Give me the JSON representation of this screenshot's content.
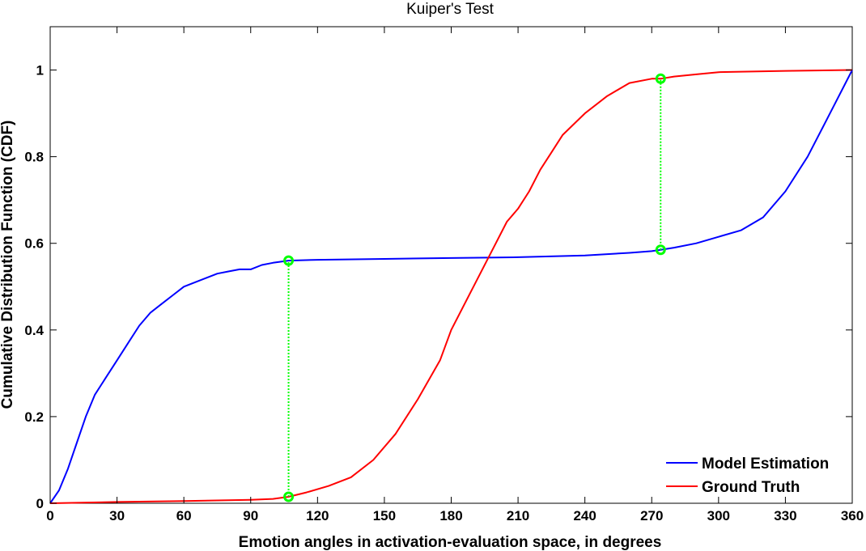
{
  "chart_data": {
    "type": "line",
    "title": "Kuiper's Test",
    "xlabel": "Emotion angles in activation-evaluation space, in degrees",
    "ylabel": "Cumulative Distribution Function (CDF)",
    "xlim": [
      0,
      360
    ],
    "ylim": [
      0,
      1.1
    ],
    "xticks": [
      "0",
      "30",
      "60",
      "90",
      "120",
      "150",
      "180",
      "210",
      "240",
      "270",
      "300",
      "330",
      "360"
    ],
    "yticks": [
      "0",
      "0.2",
      "0.4",
      "0.6",
      "0.8",
      "1"
    ],
    "grid": false,
    "legend_position": "bottom-right",
    "series": [
      {
        "name": "Model Estimation",
        "color": "#0000ff",
        "x": [
          0,
          4,
          8,
          12,
          16,
          20,
          25,
          30,
          35,
          40,
          45,
          50,
          55,
          60,
          65,
          70,
          75,
          80,
          85,
          90,
          95,
          100,
          107,
          120,
          150,
          180,
          210,
          240,
          260,
          270,
          274,
          280,
          290,
          300,
          310,
          320,
          330,
          340,
          350,
          360
        ],
        "y": [
          0.0,
          0.03,
          0.08,
          0.14,
          0.2,
          0.25,
          0.29,
          0.33,
          0.37,
          0.41,
          0.44,
          0.46,
          0.48,
          0.5,
          0.51,
          0.52,
          0.53,
          0.535,
          0.54,
          0.54,
          0.55,
          0.555,
          0.56,
          0.562,
          0.564,
          0.566,
          0.568,
          0.572,
          0.578,
          0.582,
          0.585,
          0.59,
          0.6,
          0.615,
          0.63,
          0.66,
          0.72,
          0.8,
          0.9,
          1.0
        ]
      },
      {
        "name": "Ground Truth",
        "color": "#ff0000",
        "x": [
          0,
          30,
          60,
          90,
          100,
          107,
          115,
          125,
          135,
          145,
          155,
          165,
          175,
          180,
          190,
          200,
          205,
          210,
          215,
          220,
          225,
          230,
          240,
          250,
          260,
          270,
          274,
          280,
          290,
          300,
          330,
          360
        ],
        "y": [
          0.0,
          0.003,
          0.005,
          0.008,
          0.01,
          0.015,
          0.025,
          0.04,
          0.06,
          0.1,
          0.16,
          0.24,
          0.33,
          0.4,
          0.5,
          0.6,
          0.65,
          0.68,
          0.72,
          0.77,
          0.81,
          0.85,
          0.9,
          0.94,
          0.97,
          0.98,
          0.98,
          0.985,
          0.99,
          0.995,
          0.998,
          1.0
        ]
      }
    ],
    "markers": {
      "color": "#00ff00",
      "segments": [
        {
          "x": 107,
          "y1": 0.015,
          "y2": 0.56
        },
        {
          "x": 274,
          "y1": 0.585,
          "y2": 0.98
        }
      ]
    }
  }
}
